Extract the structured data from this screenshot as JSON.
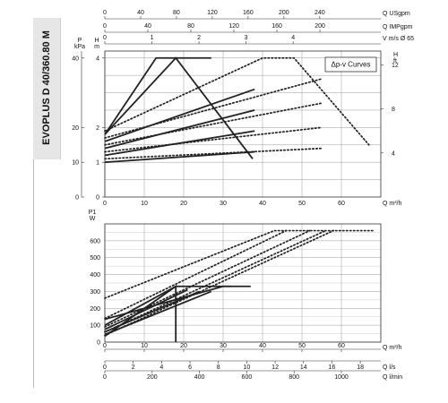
{
  "sidebar": {
    "title": "EVOPLUS D 40/360.80 M"
  },
  "chart_data": [
    {
      "type": "line",
      "title": "",
      "legend_box": "Δp-v Curves",
      "x_unit": "Q m³/h",
      "xlim": [
        0,
        70
      ],
      "x_ticks": [
        "0",
        "10",
        "20",
        "30",
        "40",
        "50",
        "60"
      ],
      "y_left": {
        "label": "H",
        "unit": "m",
        "range": [
          0,
          42
        ],
        "ticks": [
          "0",
          "1",
          "2",
          "4"
        ],
        "tick_values": [
          0,
          10,
          20,
          40
        ]
      },
      "y_far_left": {
        "label": "P",
        "unit": "kPa",
        "ticks": [
          "0",
          "10",
          "20",
          "40"
        ]
      },
      "y_right": {
        "label": "H",
        "unit": "ft",
        "ticks": [
          "4",
          "8",
          "12"
        ],
        "tick_values": [
          4,
          8,
          12
        ]
      },
      "top_axes": [
        {
          "label": "Q USgpm",
          "ticks": [
            "0",
            "40",
            "80",
            "120",
            "160",
            "200",
            "240"
          ],
          "values": [
            0,
            40,
            80,
            120,
            160,
            200,
            240
          ],
          "factor": 0.2271
        },
        {
          "label": "Q IMPgpm",
          "ticks": [
            "0",
            "40",
            "80",
            "120",
            "160",
            "200"
          ],
          "values": [
            0,
            40,
            80,
            120,
            160,
            200
          ],
          "factor": 0.2728
        },
        {
          "label": "V m/s Ø 65",
          "ticks": [
            "0",
            "1",
            "2",
            "3",
            "4"
          ],
          "values": [
            0,
            1,
            2,
            3,
            4
          ],
          "factor": 11.94
        }
      ],
      "series": [
        {
          "style": "solid",
          "points": [
            [
              0,
              18
            ],
            [
              13,
              40
            ],
            [
              27,
              40
            ]
          ]
        },
        {
          "style": "solid",
          "points": [
            [
              0,
              18
            ],
            [
              18,
              40
            ],
            [
              37.5,
              11
            ]
          ]
        },
        {
          "style": "solid",
          "points": [
            [
              0,
              16
            ],
            [
              38,
              31
            ]
          ]
        },
        {
          "style": "solid",
          "points": [
            [
              0,
              14
            ],
            [
              38,
              25
            ]
          ]
        },
        {
          "style": "solid",
          "points": [
            [
              0,
              12
            ],
            [
              38,
              19
            ]
          ]
        },
        {
          "style": "solid",
          "points": [
            [
              0,
              10
            ],
            [
              38,
              13
            ]
          ]
        },
        {
          "style": "dotted",
          "points": [
            [
              0,
              19
            ],
            [
              40,
              40
            ],
            [
              48,
              40
            ],
            [
              67,
              15
            ]
          ]
        },
        {
          "style": "dotted",
          "points": [
            [
              0,
              17
            ],
            [
              55,
              34
            ]
          ]
        },
        {
          "style": "dotted",
          "points": [
            [
              0,
              15
            ],
            [
              55,
              27
            ]
          ]
        },
        {
          "style": "dotted",
          "points": [
            [
              0,
              13
            ],
            [
              55,
              20
            ]
          ]
        },
        {
          "style": "dotted",
          "points": [
            [
              0,
              11
            ],
            [
              55,
              14
            ]
          ]
        }
      ]
    },
    {
      "type": "line",
      "title": "",
      "y_label": "P1",
      "y_unit": "W",
      "ylim": [
        0,
        700
      ],
      "y_ticks": [
        0,
        100,
        200,
        300,
        400,
        500,
        600
      ],
      "xlim": [
        0,
        70
      ],
      "x_axes": [
        {
          "label": "Q m³/h",
          "ticks": [
            "0",
            "10",
            "20",
            "30",
            "40",
            "50",
            "60"
          ],
          "values": [
            0,
            10,
            20,
            30,
            40,
            50,
            60
          ],
          "factor": 1
        },
        {
          "label": "Q l/s",
          "ticks": [
            "0",
            "2",
            "4",
            "6",
            "8",
            "10",
            "12",
            "14",
            "16",
            "18"
          ],
          "values": [
            0,
            2,
            4,
            6,
            8,
            10,
            12,
            14,
            16,
            18
          ],
          "factor": 3.6
        },
        {
          "label": "Q l/min",
          "ticks": [
            "0",
            "200",
            "400",
            "600",
            "800",
            "1000"
          ],
          "values": [
            0,
            200,
            400,
            600,
            800,
            1000
          ],
          "factor": 0.06
        }
      ],
      "series": [
        {
          "style": "solid",
          "points": [
            [
              0,
              135
            ],
            [
              30,
              330
            ],
            [
              37,
              330
            ]
          ]
        },
        {
          "style": "solid",
          "points": [
            [
              0,
              100
            ],
            [
              18,
              330
            ],
            [
              32,
              330
            ]
          ]
        },
        {
          "style": "solid",
          "points": [
            [
              0,
              75
            ],
            [
              21,
              310
            ]
          ]
        },
        {
          "style": "solid",
          "points": [
            [
              0,
              60
            ],
            [
              24,
              300
            ]
          ]
        },
        {
          "style": "solid",
          "points": [
            [
              0,
              45
            ],
            [
              27,
              300
            ]
          ]
        },
        {
          "style": "solid",
          "points": [
            [
              0,
              35
            ],
            [
              18,
              330
            ],
            [
              18,
              0
            ]
          ]
        },
        {
          "style": "dotted",
          "points": [
            [
              0,
              260
            ],
            [
              43,
              660
            ],
            [
              68,
              660
            ]
          ]
        },
        {
          "style": "dotted",
          "points": [
            [
              0,
              140
            ],
            [
              46,
              660
            ]
          ]
        },
        {
          "style": "dotted",
          "points": [
            [
              0,
              90
            ],
            [
              52,
              660
            ]
          ]
        },
        {
          "style": "dotted",
          "points": [
            [
              0,
              60
            ],
            [
              56,
              660
            ]
          ]
        },
        {
          "style": "dotted",
          "points": [
            [
              0,
              40
            ],
            [
              58,
              660
            ]
          ]
        }
      ]
    }
  ]
}
